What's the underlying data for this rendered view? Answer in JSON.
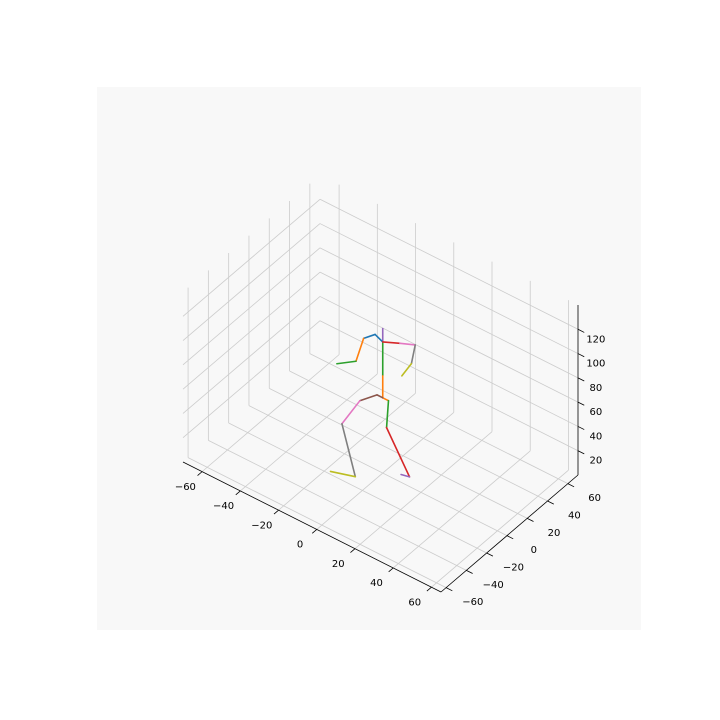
{
  "chart_data": {
    "type": "line",
    "subtype": "3d-skeleton",
    "title": "",
    "xlabel": "",
    "ylabel": "",
    "zlabel": "",
    "xlim": [
      -70,
      65
    ],
    "ylim": [
      -65,
      70
    ],
    "zlim": [
      0,
      140
    ],
    "x_ticks": [
      -60,
      -40,
      -20,
      0,
      20,
      40,
      60
    ],
    "y_ticks": [
      -60,
      -40,
      -20,
      0,
      20,
      40,
      60
    ],
    "z_ticks": [
      20,
      40,
      60,
      80,
      100,
      120
    ],
    "x_tick_labels": [
      "−60",
      "−40",
      "−20",
      "0",
      "20",
      "40",
      "60"
    ],
    "y_tick_labels": [
      "−60",
      "−40",
      "−20",
      "0",
      "20",
      "40",
      "60"
    ],
    "z_tick_labels": [
      "20",
      "40",
      "60",
      "80",
      "100",
      "120"
    ],
    "grid": true,
    "pane_color": "#f8f8f8",
    "grid_color": "#cccccc",
    "joints": {
      "pelvis": [
        0,
        0,
        62
      ],
      "r_hip": [
        3,
        0,
        62
      ],
      "r_knee": [
        2,
        0,
        39
      ],
      "r_ankle": [
        14,
        0,
        8
      ],
      "r_toe": [
        8,
        3,
        3
      ],
      "l_hip": [
        -3,
        0,
        62
      ],
      "l_knee": [
        -12,
        0,
        50
      ],
      "l_ankle": [
        -24,
        5,
        18
      ],
      "l_foot": [
        -17,
        5,
        -20
      ],
      "l_toe": [
        -30,
        5,
        -26
      ],
      "spine": [
        0,
        0,
        80
      ],
      "neck": [
        0,
        0,
        108
      ],
      "head": [
        0,
        0,
        119
      ],
      "l_shoulder": [
        -4,
        0,
        111
      ],
      "l_elbow": [
        -10,
        0,
        103
      ],
      "l_wrist": [
        -14,
        0,
        81
      ],
      "l_hand": [
        -24,
        0,
        71
      ],
      "r_shoulder": [
        9,
        0,
        114
      ],
      "r_elbow": [
        17,
        0,
        119
      ],
      "r_wrist": [
        15,
        0,
        102
      ],
      "r_hand": [
        10,
        0,
        88
      ]
    },
    "bones": [
      {
        "from": "spine",
        "to": "neck",
        "color": "#2ca02c"
      },
      {
        "from": "neck",
        "to": "head",
        "color": "#9467bd"
      },
      {
        "from": "neck",
        "to": "l_shoulder",
        "color": "#1f77b4"
      },
      {
        "from": "l_shoulder",
        "to": "l_elbow",
        "color": "#1f77b4"
      },
      {
        "from": "l_elbow",
        "to": "l_wrist",
        "color": "#ff7f0e"
      },
      {
        "from": "l_wrist",
        "to": "l_hand",
        "color": "#2ca02c"
      },
      {
        "from": "neck",
        "to": "r_shoulder",
        "color": "#d62728"
      },
      {
        "from": "r_shoulder",
        "to": "r_elbow",
        "color": "#e377c2"
      },
      {
        "from": "r_elbow",
        "to": "r_wrist",
        "color": "#7f7f7f"
      },
      {
        "from": "r_wrist",
        "to": "r_hand",
        "color": "#bcbd22"
      },
      {
        "from": "spine",
        "to": "pelvis",
        "color": "#ff7f0e"
      },
      {
        "from": "pelvis",
        "to": "r_hip",
        "color": "#ff7f0e"
      },
      {
        "from": "r_hip",
        "to": "r_knee",
        "color": "#2ca02c"
      },
      {
        "from": "r_knee",
        "to": "r_ankle",
        "color": "#d62728"
      },
      {
        "from": "r_ankle",
        "to": "r_toe",
        "color": "#9467bd"
      },
      {
        "from": "pelvis",
        "to": "l_hip",
        "color": "#8c564b"
      },
      {
        "from": "l_hip",
        "to": "l_knee",
        "color": "#8c564b"
      },
      {
        "from": "l_knee",
        "to": "l_ankle",
        "color": "#e377c2"
      },
      {
        "from": "l_ankle",
        "to": "l_foot",
        "color": "#7f7f7f"
      },
      {
        "from": "l_foot",
        "to": "l_toe",
        "color": "#bcbd22"
      }
    ]
  }
}
